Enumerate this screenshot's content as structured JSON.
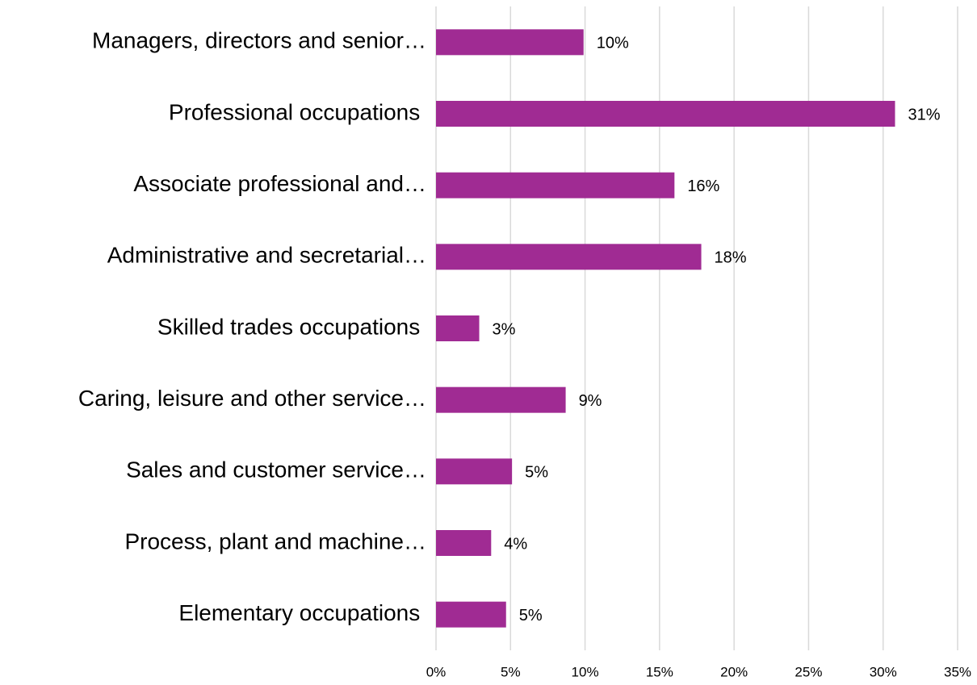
{
  "chart_data": {
    "type": "hbar",
    "categories": [
      "Managers, directors and senior…",
      "Professional occupations ",
      "Associate professional and…",
      "Administrative and secretarial…",
      "Skilled trades occupations ",
      "Caring, leisure and other service…",
      "Sales and customer service…",
      "Process, plant and machine…",
      "Elementary occupations "
    ],
    "values": [
      9.9,
      30.8,
      16.0,
      17.8,
      2.9,
      8.7,
      5.1,
      3.7,
      4.7
    ],
    "value_labels": [
      "10%",
      "31%",
      "16%",
      "18%",
      "3%",
      "9%",
      "5%",
      "4%",
      "5%"
    ],
    "color": "#a02b93",
    "xlim": [
      0,
      35
    ],
    "xticks": [
      {
        "value": 0,
        "label": "0%"
      },
      {
        "value": 5,
        "label": "5%"
      },
      {
        "value": 10,
        "label": "10%"
      },
      {
        "value": 15,
        "label": "15%"
      },
      {
        "value": 20,
        "label": "20%"
      },
      {
        "value": 25,
        "label": "25%"
      },
      {
        "value": 30,
        "label": "30%"
      },
      {
        "value": 35,
        "label": "35%"
      }
    ],
    "grid": true
  }
}
